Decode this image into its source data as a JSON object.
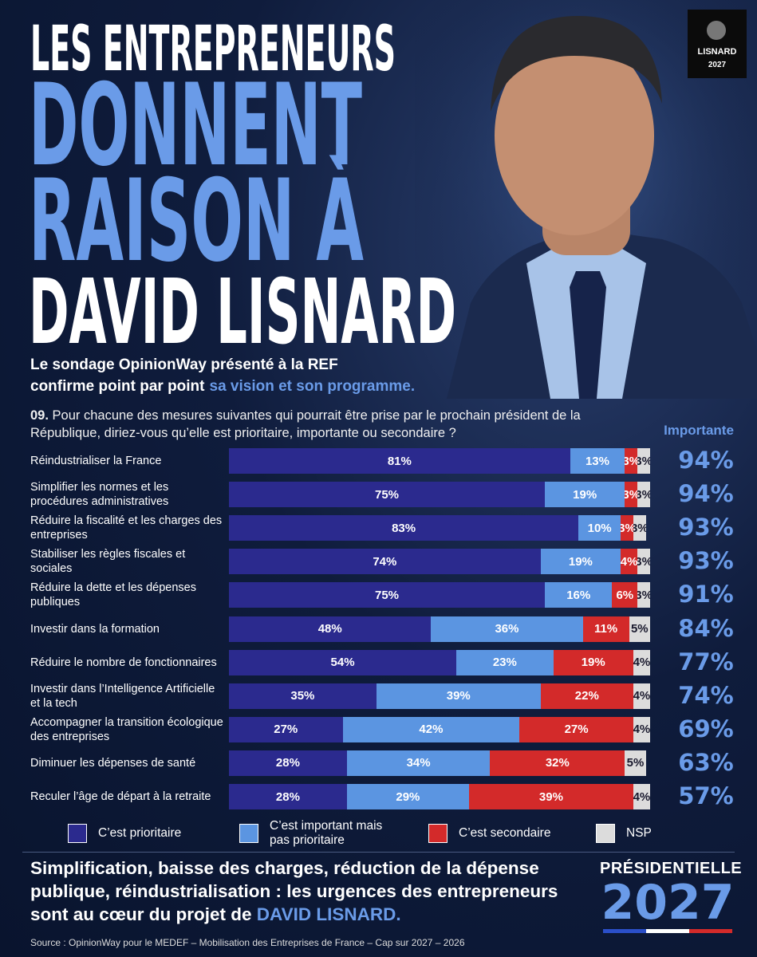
{
  "header": {
    "title_lines": [
      "LES ENTREPRENEURS",
      "DONNENT",
      "RAISON À",
      "DAVID LISNARD"
    ],
    "subtitle_line1": "Le sondage OpinionWay présenté à la REF",
    "subtitle_line2": "confirme point par point",
    "subtitle_highlight": "sa vision et son programme.",
    "logo": {
      "name": "LISNARD",
      "year": "2027"
    }
  },
  "chart_data": {
    "type": "bar",
    "orientation": "horizontal",
    "stacked": true,
    "question_number": "09.",
    "question": "Pour chacune des mesures suivantes qui pourrait être prise par le prochain président de la République, diriez-vous qu’elle est prioritaire, importante ou secondaire ?",
    "categories": [
      "Réindustrialiser la France",
      "Simplifier les normes et les procédures administratives",
      "Réduire la fiscalité et les charges des entreprises",
      "Stabiliser les règles fiscales et sociales",
      "Réduire la dette et les dépenses publiques",
      "Investir dans la formation",
      "Réduire le nombre de fonctionnaires",
      "Investir dans l’Intelligence Artificielle et la tech",
      "Accompagner la transition écologique des entreprises",
      "Diminuer les dépenses de santé",
      "Reculer l’âge de départ à la retraite"
    ],
    "xlim": [
      0,
      100
    ],
    "series": [
      {
        "name": "C’est prioritaire",
        "color": "#2b2a8e",
        "label_color": "#ffffff",
        "values": [
          81,
          75,
          83,
          74,
          75,
          48,
          54,
          35,
          27,
          28,
          28
        ],
        "value_labels": [
          "81%",
          "75%",
          "83%",
          "74%",
          "75%",
          "48%",
          "54%",
          "35%",
          "27%",
          "28%",
          "28%"
        ]
      },
      {
        "name": "C’est important mais pas prioritaire",
        "color": "#5b95e1",
        "label_color": "#ffffff",
        "values": [
          13,
          19,
          10,
          19,
          16,
          36,
          23,
          39,
          42,
          34,
          29
        ],
        "value_labels": [
          "13%",
          "19%",
          "10%",
          "19%",
          "16%",
          "36%",
          "23%",
          "39%",
          "42%",
          "34%",
          "29%"
        ]
      },
      {
        "name": "C’est secondaire",
        "color": "#d32a2a",
        "label_color": "#ffffff",
        "values": [
          3,
          3,
          3,
          4,
          6,
          11,
          19,
          22,
          27,
          32,
          39
        ],
        "value_labels": [
          "3%",
          "3%",
          "3%",
          "4%",
          "6%",
          "11%",
          "19%",
          "22%",
          "27%",
          "32%",
          "39%"
        ]
      },
      {
        "name": "NSP",
        "color": "#dcdcdc",
        "label_color": "#1a1a2e",
        "values": [
          3,
          3,
          3,
          3,
          3,
          5,
          4,
          4,
          4,
          5,
          4
        ],
        "value_labels": [
          "3%",
          "3%",
          "3%",
          "3%",
          "3%",
          "5%",
          "4%",
          "4%",
          "4%",
          "5%",
          "4%"
        ]
      }
    ],
    "importante": {
      "label": "Importante",
      "color": "#6a9be8",
      "values": [
        94,
        94,
        93,
        93,
        91,
        84,
        77,
        74,
        69,
        63,
        57
      ],
      "value_labels": [
        "94%",
        "94%",
        "93%",
        "93%",
        "91%",
        "84%",
        "77%",
        "74%",
        "69%",
        "63%",
        "57%"
      ]
    },
    "legend": "bottom"
  },
  "footer": {
    "text": "Simplification, baisse des charges, réduction de la dépense publique, réindustrialisation : les urgences des entrepreneurs sont au cœur du projet de",
    "highlight": "DAVID LISNARD.",
    "badge": "PRÉSIDENTIELLE",
    "badge_year": "2027",
    "source": "Source : OpinionWay pour le MEDEF – Mobilisation des Entreprises de France – Cap sur 2027 – 2026"
  }
}
